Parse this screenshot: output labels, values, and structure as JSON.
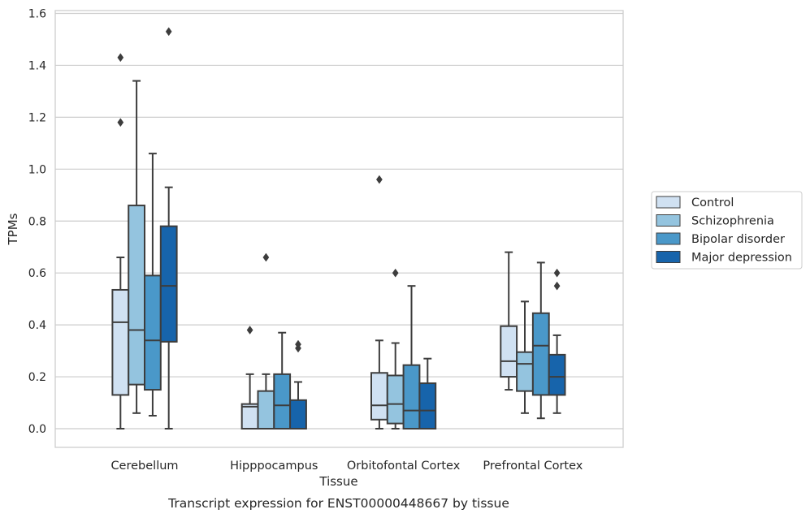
{
  "chart_data": {
    "type": "box",
    "xlabel": "Tissue",
    "ylabel": "TPMs",
    "caption": "Transcript expression for ENST00000448667 by tissue",
    "ylim": [
      -0.075,
      1.61
    ],
    "yticks": [
      0.0,
      0.2,
      0.4,
      0.6,
      0.8,
      1.0,
      1.2,
      1.4,
      1.6
    ],
    "ytick_labels": [
      "0.0",
      "0.2",
      "0.4",
      "0.6",
      "0.8",
      "1.0",
      "1.2",
      "1.4",
      "1.6"
    ],
    "grid": "horizontal",
    "legend_position": "outside-right",
    "categories": [
      "Cerebellum",
      "Hipppocampus",
      "Orbitofontal Cortex",
      "Prefrontal Cortex"
    ],
    "series": [
      {
        "name": "Control",
        "color": "#d0e1f2",
        "boxes": [
          {
            "whislo": 0.0,
            "q1": 0.13,
            "med": 0.41,
            "q3": 0.535,
            "whishi": 0.66,
            "fliers": [
              1.18,
              1.43
            ]
          },
          {
            "whislo": 0.0,
            "q1": 0.0,
            "med": 0.085,
            "q3": 0.095,
            "whishi": 0.21,
            "fliers": [
              0.38
            ]
          },
          {
            "whislo": 0.0,
            "q1": 0.035,
            "med": 0.09,
            "q3": 0.215,
            "whishi": 0.34,
            "fliers": [
              0.96
            ]
          },
          {
            "whislo": 0.15,
            "q1": 0.2,
            "med": 0.26,
            "q3": 0.395,
            "whishi": 0.68,
            "fliers": []
          }
        ]
      },
      {
        "name": "Schizophrenia",
        "color": "#94c4df",
        "boxes": [
          {
            "whislo": 0.06,
            "q1": 0.17,
            "med": 0.38,
            "q3": 0.86,
            "whishi": 1.34,
            "fliers": []
          },
          {
            "whislo": 0.0,
            "q1": 0.0,
            "med": 0.0,
            "q3": 0.145,
            "whishi": 0.21,
            "fliers": [
              0.66
            ]
          },
          {
            "whislo": 0.0,
            "q1": 0.02,
            "med": 0.095,
            "q3": 0.205,
            "whishi": 0.33,
            "fliers": [
              0.6
            ]
          },
          {
            "whislo": 0.06,
            "q1": 0.145,
            "med": 0.25,
            "q3": 0.295,
            "whishi": 0.49,
            "fliers": []
          }
        ]
      },
      {
        "name": "Bipolar disorder",
        "color": "#4a98c9",
        "boxes": [
          {
            "whislo": 0.05,
            "q1": 0.15,
            "med": 0.34,
            "q3": 0.59,
            "whishi": 1.06,
            "fliers": []
          },
          {
            "whislo": 0.0,
            "q1": 0.0,
            "med": 0.09,
            "q3": 0.21,
            "whishi": 0.37,
            "fliers": []
          },
          {
            "whislo": 0.0,
            "q1": 0.0,
            "med": 0.07,
            "q3": 0.245,
            "whishi": 0.55,
            "fliers": []
          },
          {
            "whislo": 0.04,
            "q1": 0.13,
            "med": 0.32,
            "q3": 0.445,
            "whishi": 0.64,
            "fliers": []
          }
        ]
      },
      {
        "name": "Major depression",
        "color": "#1764ab",
        "boxes": [
          {
            "whislo": 0.0,
            "q1": 0.335,
            "med": 0.55,
            "q3": 0.78,
            "whishi": 0.93,
            "fliers": [
              1.53
            ]
          },
          {
            "whislo": 0.0,
            "q1": 0.0,
            "med": 0.0,
            "q3": 0.11,
            "whishi": 0.18,
            "fliers": [
              0.31,
              0.325
            ]
          },
          {
            "whislo": 0.0,
            "q1": 0.0,
            "med": 0.07,
            "q3": 0.175,
            "whishi": 0.27,
            "fliers": []
          },
          {
            "whislo": 0.06,
            "q1": 0.13,
            "med": 0.2,
            "q3": 0.285,
            "whishi": 0.36,
            "fliers": [
              0.55,
              0.6
            ]
          }
        ]
      }
    ]
  }
}
